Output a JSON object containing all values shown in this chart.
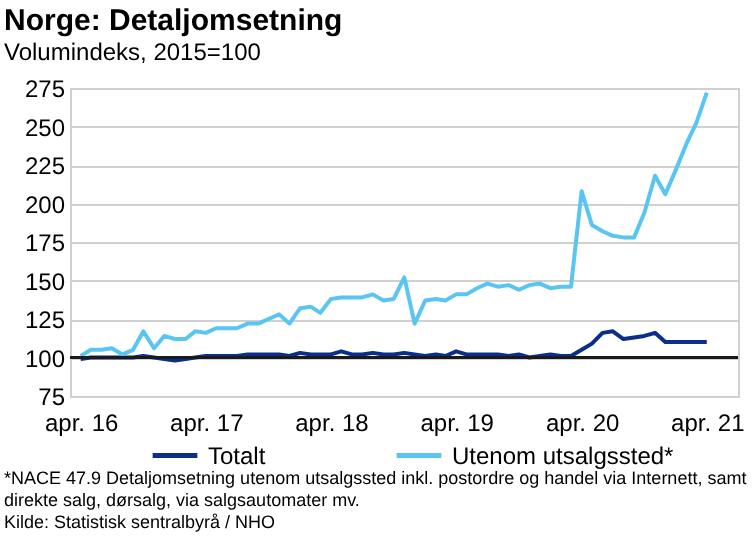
{
  "chart_data": {
    "type": "line",
    "title": "Norge: Detaljomsetning",
    "subtitle": "Volumindeks, 2015=100",
    "x": [
      "2016-04",
      "2016-05",
      "2016-06",
      "2016-07",
      "2016-08",
      "2016-09",
      "2016-10",
      "2016-11",
      "2016-12",
      "2017-01",
      "2017-02",
      "2017-03",
      "2017-04",
      "2017-05",
      "2017-06",
      "2017-07",
      "2017-08",
      "2017-09",
      "2017-10",
      "2017-11",
      "2017-12",
      "2018-01",
      "2018-02",
      "2018-03",
      "2018-04",
      "2018-05",
      "2018-06",
      "2018-07",
      "2018-08",
      "2018-09",
      "2018-10",
      "2018-11",
      "2018-12",
      "2019-01",
      "2019-02",
      "2019-03",
      "2019-04",
      "2019-05",
      "2019-06",
      "2019-07",
      "2019-08",
      "2019-09",
      "2019-10",
      "2019-11",
      "2019-12",
      "2020-01",
      "2020-02",
      "2020-03",
      "2020-04",
      "2020-05",
      "2020-06",
      "2020-07",
      "2020-08",
      "2020-09",
      "2020-10",
      "2020-11",
      "2020-12",
      "2021-01",
      "2021-02",
      "2021-03",
      "2021-04"
    ],
    "series": [
      {
        "name": "Totalt",
        "color": "#0a2f8a",
        "values": [
          99,
          100,
          100,
          100,
          100,
          100,
          101,
          100,
          99,
          98,
          99,
          100,
          101,
          101,
          101,
          101,
          102,
          102,
          102,
          102,
          101,
          103,
          102,
          102,
          102,
          104,
          102,
          102,
          103,
          102,
          102,
          103,
          102,
          101,
          102,
          101,
          104,
          102,
          102,
          102,
          102,
          101,
          102,
          100,
          101,
          102,
          101,
          101,
          105,
          109,
          116,
          117,
          112,
          113,
          114,
          116,
          110,
          110,
          110,
          110,
          110
        ]
      },
      {
        "name": "Utenom utsalgssted*",
        "color": "#5bc5f2",
        "values": [
          101,
          105,
          105,
          106,
          102,
          105,
          117,
          106,
          114,
          112,
          112,
          117,
          116,
          119,
          119,
          119,
          122,
          122,
          125,
          128,
          122,
          132,
          133,
          129,
          138,
          139,
          139,
          139,
          141,
          137,
          138,
          152,
          122,
          137,
          138,
          137,
          141,
          141,
          145,
          148,
          146,
          147,
          144,
          147,
          148,
          145,
          146,
          146,
          208,
          186,
          182,
          179,
          178,
          178,
          194,
          218,
          206,
          222,
          239,
          252,
          272
        ]
      }
    ],
    "xlim": [
      "2016-03",
      "2021-07"
    ],
    "xticks": [
      {
        "value": "2016-04",
        "label": "apr. 16"
      },
      {
        "value": "2017-04",
        "label": "apr. 17"
      },
      {
        "value": "2018-04",
        "label": "apr. 18"
      },
      {
        "value": "2019-04",
        "label": "apr. 19"
      },
      {
        "value": "2020-04",
        "label": "apr. 20"
      },
      {
        "value": "2021-04",
        "label": "apr. 21"
      }
    ],
    "ylim": [
      75,
      275
    ],
    "yticks": [
      75,
      100,
      125,
      150,
      175,
      200,
      225,
      250,
      275
    ],
    "grid": "y",
    "legend": "bottom",
    "marker": "none",
    "line_style": "solid",
    "ref_lines": [
      {
        "axis": "y",
        "value": 100,
        "color": "#1a1a1a"
      }
    ],
    "annotations": [
      "*NACE 47.9 Detaljomsetning utenom utsalgssted inkl. postordre og handel via Internett, samt\ndirekte salg, dørsalg, via salgsautomater mv.",
      "Kilde: Statistisk sentralbyrå / NHO"
    ]
  }
}
